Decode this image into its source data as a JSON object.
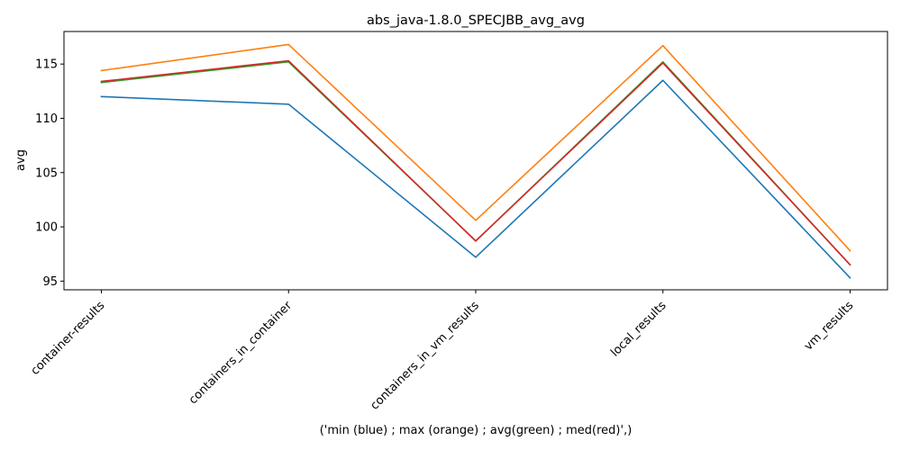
{
  "chart_data": {
    "type": "line",
    "title": "abs_java-1.8.0_SPECJBB_avg_avg",
    "xlabel": "('min (blue) ; max (orange) ; avg(green) ; med(red)',)",
    "ylabel": "avg",
    "categories": [
      "container-results",
      "containers_in_container",
      "containers_in_vm_results",
      "local_results",
      "vm_results"
    ],
    "yticks": [
      95,
      100,
      105,
      110,
      115
    ],
    "ylim": [
      94.2,
      118.0
    ],
    "grid": false,
    "legend": "none",
    "series": [
      {
        "color": "#1f77b4",
        "values": [
          112.0,
          111.3,
          97.2,
          113.5,
          95.3
        ]
      },
      {
        "color": "#ff7f0e",
        "values": [
          114.4,
          116.8,
          100.6,
          116.7,
          97.8
        ]
      },
      {
        "color": "#2ca02c",
        "values": [
          113.3,
          115.2,
          98.7,
          115.2,
          96.5
        ]
      },
      {
        "color": "#d62728",
        "values": [
          113.4,
          115.3,
          98.7,
          115.1,
          96.5
        ]
      }
    ]
  }
}
